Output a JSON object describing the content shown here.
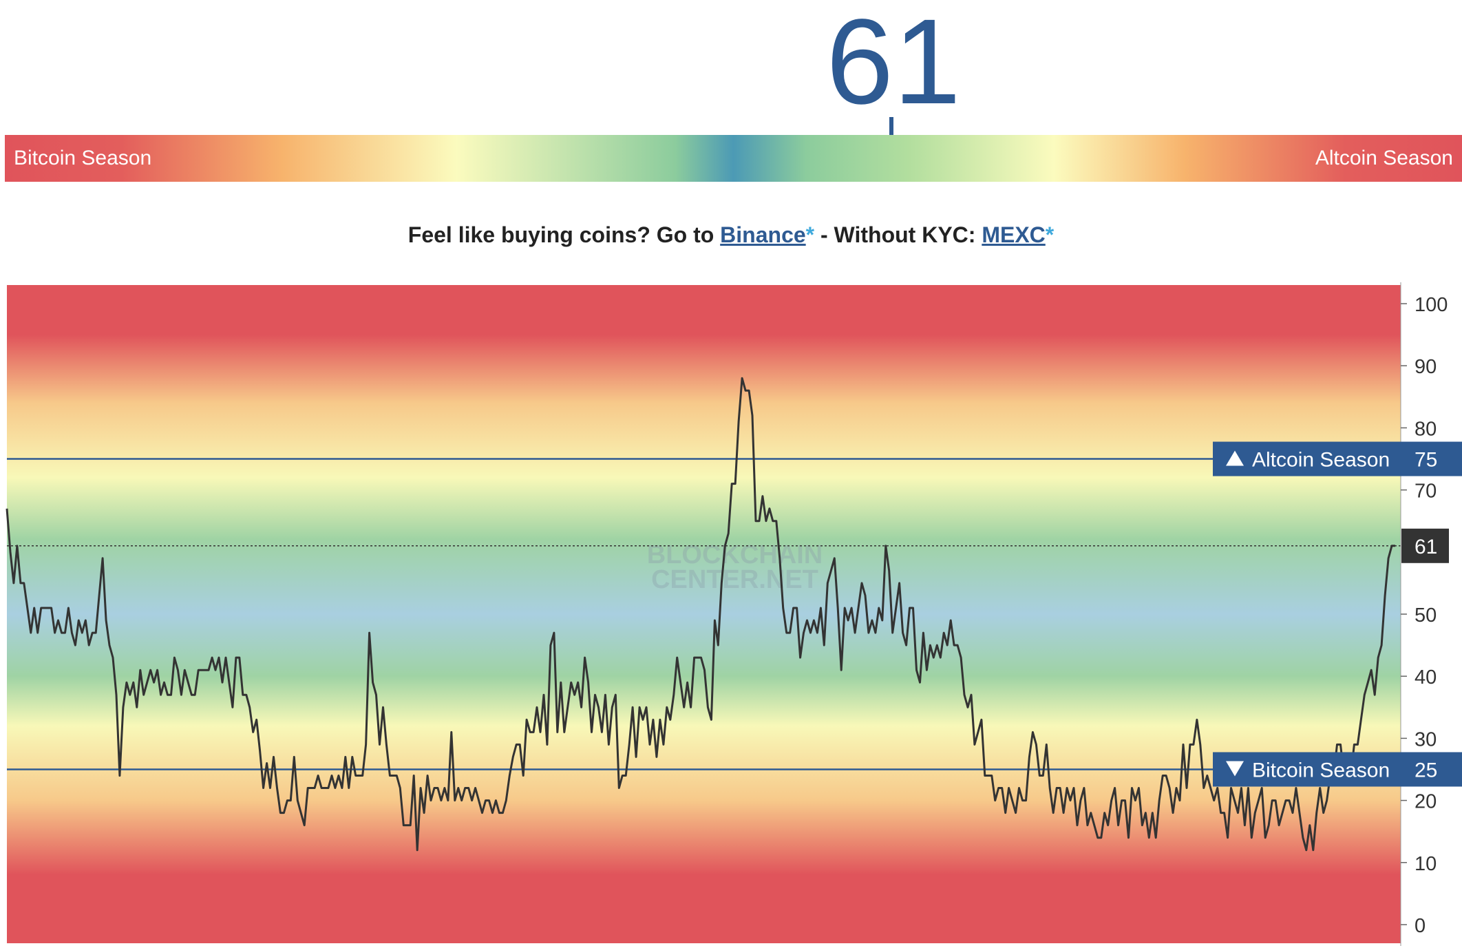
{
  "index": {
    "value": "61"
  },
  "season_bar": {
    "left_label": "Bitcoin Season",
    "right_label": "Altcoin Season",
    "marker_value": 61
  },
  "promo": {
    "prefix": "Feel like buying coins? Go to ",
    "link1_label": "Binance",
    "star1": "*",
    "middle": " - Without KYC: ",
    "link2_label": "MEXC",
    "star2": "*"
  },
  "colors": {
    "accent": "#2e5a92",
    "line": "#333333",
    "star": "#3fa9dc",
    "band_red": "#e0545b",
    "band_orange": "#f7c98a",
    "band_yellow": "#f8f8b8",
    "band_green": "#9fd3a4",
    "band_blue": "#a9cfe0"
  },
  "chart_data": {
    "type": "line",
    "ylim": [
      -3,
      103
    ],
    "yticks": [
      "100",
      "90",
      "80",
      "70",
      "50",
      "40",
      "30",
      "20",
      "10",
      "0"
    ],
    "watermark": [
      "BLOCKCHAIN",
      "CENTER.NET"
    ],
    "current": {
      "value": 61,
      "label": "61"
    },
    "thresholds": [
      {
        "value": 75,
        "label": "Altcoin Season",
        "value_label": "75",
        "direction": "up"
      },
      {
        "value": 25,
        "label": "Bitcoin Season",
        "value_label": "25",
        "direction": "down"
      }
    ],
    "series": [
      {
        "values": [
          67,
          60,
          55,
          61,
          55,
          55,
          51,
          47,
          51,
          47,
          51,
          51,
          51,
          51,
          47,
          49,
          47,
          47,
          51,
          47,
          45,
          49,
          47,
          49,
          45,
          47,
          47,
          53,
          59,
          49,
          45,
          43,
          37,
          24,
          35,
          39,
          37,
          39,
          35,
          41,
          37,
          39,
          41,
          39,
          41,
          37,
          39,
          37,
          37,
          43,
          41,
          37,
          41,
          39,
          37,
          37,
          41,
          41,
          41,
          41,
          43,
          41,
          43,
          39,
          43,
          39,
          35,
          43,
          43,
          37,
          37,
          35,
          31,
          33,
          28,
          22,
          26,
          22,
          27,
          22,
          18,
          18,
          20,
          20,
          27,
          20,
          18,
          16,
          22,
          22,
          22,
          24,
          22,
          22,
          22,
          24,
          22,
          24,
          22,
          27,
          22,
          27,
          24,
          24,
          24,
          29,
          47,
          39,
          37,
          29,
          35,
          29,
          24,
          24,
          24,
          22,
          16,
          16,
          16,
          24,
          12,
          22,
          18,
          24,
          20,
          22,
          22,
          20,
          22,
          20,
          31,
          20,
          22,
          20,
          22,
          22,
          20,
          22,
          20,
          18,
          20,
          20,
          18,
          20,
          18,
          18,
          20,
          24,
          27,
          29,
          29,
          24,
          33,
          31,
          31,
          35,
          31,
          37,
          29,
          45,
          47,
          31,
          39,
          31,
          35,
          39,
          37,
          39,
          35,
          43,
          39,
          31,
          37,
          35,
          31,
          37,
          29,
          35,
          37,
          22,
          24,
          24,
          29,
          35,
          27,
          35,
          33,
          35,
          29,
          33,
          27,
          33,
          29,
          35,
          33,
          37,
          43,
          39,
          35,
          39,
          35,
          43,
          43,
          43,
          41,
          35,
          33,
          49,
          45,
          55,
          61,
          63,
          71,
          71,
          81,
          88,
          86,
          86,
          82,
          65,
          65,
          69,
          65,
          67,
          65,
          65,
          59,
          51,
          47,
          47,
          51,
          51,
          43,
          47,
          49,
          47,
          49,
          47,
          51,
          45,
          55,
          57,
          59,
          51,
          41,
          51,
          49,
          51,
          47,
          51,
          55,
          53,
          47,
          49,
          47,
          51,
          49,
          61,
          57,
          47,
          51,
          55,
          47,
          45,
          51,
          51,
          41,
          39,
          47,
          41,
          45,
          43,
          45,
          43,
          47,
          45,
          49,
          45,
          45,
          43,
          37,
          35,
          37,
          29,
          31,
          33,
          24,
          24,
          24,
          20,
          22,
          22,
          18,
          22,
          20,
          18,
          22,
          20,
          20,
          27,
          31,
          29,
          24,
          24,
          29,
          22,
          18,
          22,
          22,
          18,
          22,
          20,
          22,
          16,
          20,
          22,
          16,
          18,
          16,
          14,
          14,
          18,
          16,
          20,
          22,
          16,
          20,
          20,
          14,
          22,
          20,
          22,
          16,
          18,
          14,
          18,
          14,
          20,
          24,
          24,
          22,
          18,
          22,
          20,
          29,
          22,
          29,
          29,
          33,
          29,
          22,
          24,
          22,
          20,
          22,
          18,
          18,
          14,
          22,
          20,
          18,
          22,
          16,
          22,
          14,
          18,
          20,
          22,
          14,
          16,
          20,
          20,
          16,
          18,
          20,
          20,
          18,
          22,
          18,
          14,
          12,
          16,
          12,
          18,
          22,
          18,
          20,
          24,
          24,
          29,
          29,
          24,
          27,
          24,
          29,
          29,
          33,
          37,
          39,
          41,
          37,
          43,
          45,
          53,
          59,
          61,
          61
        ]
      }
    ]
  }
}
